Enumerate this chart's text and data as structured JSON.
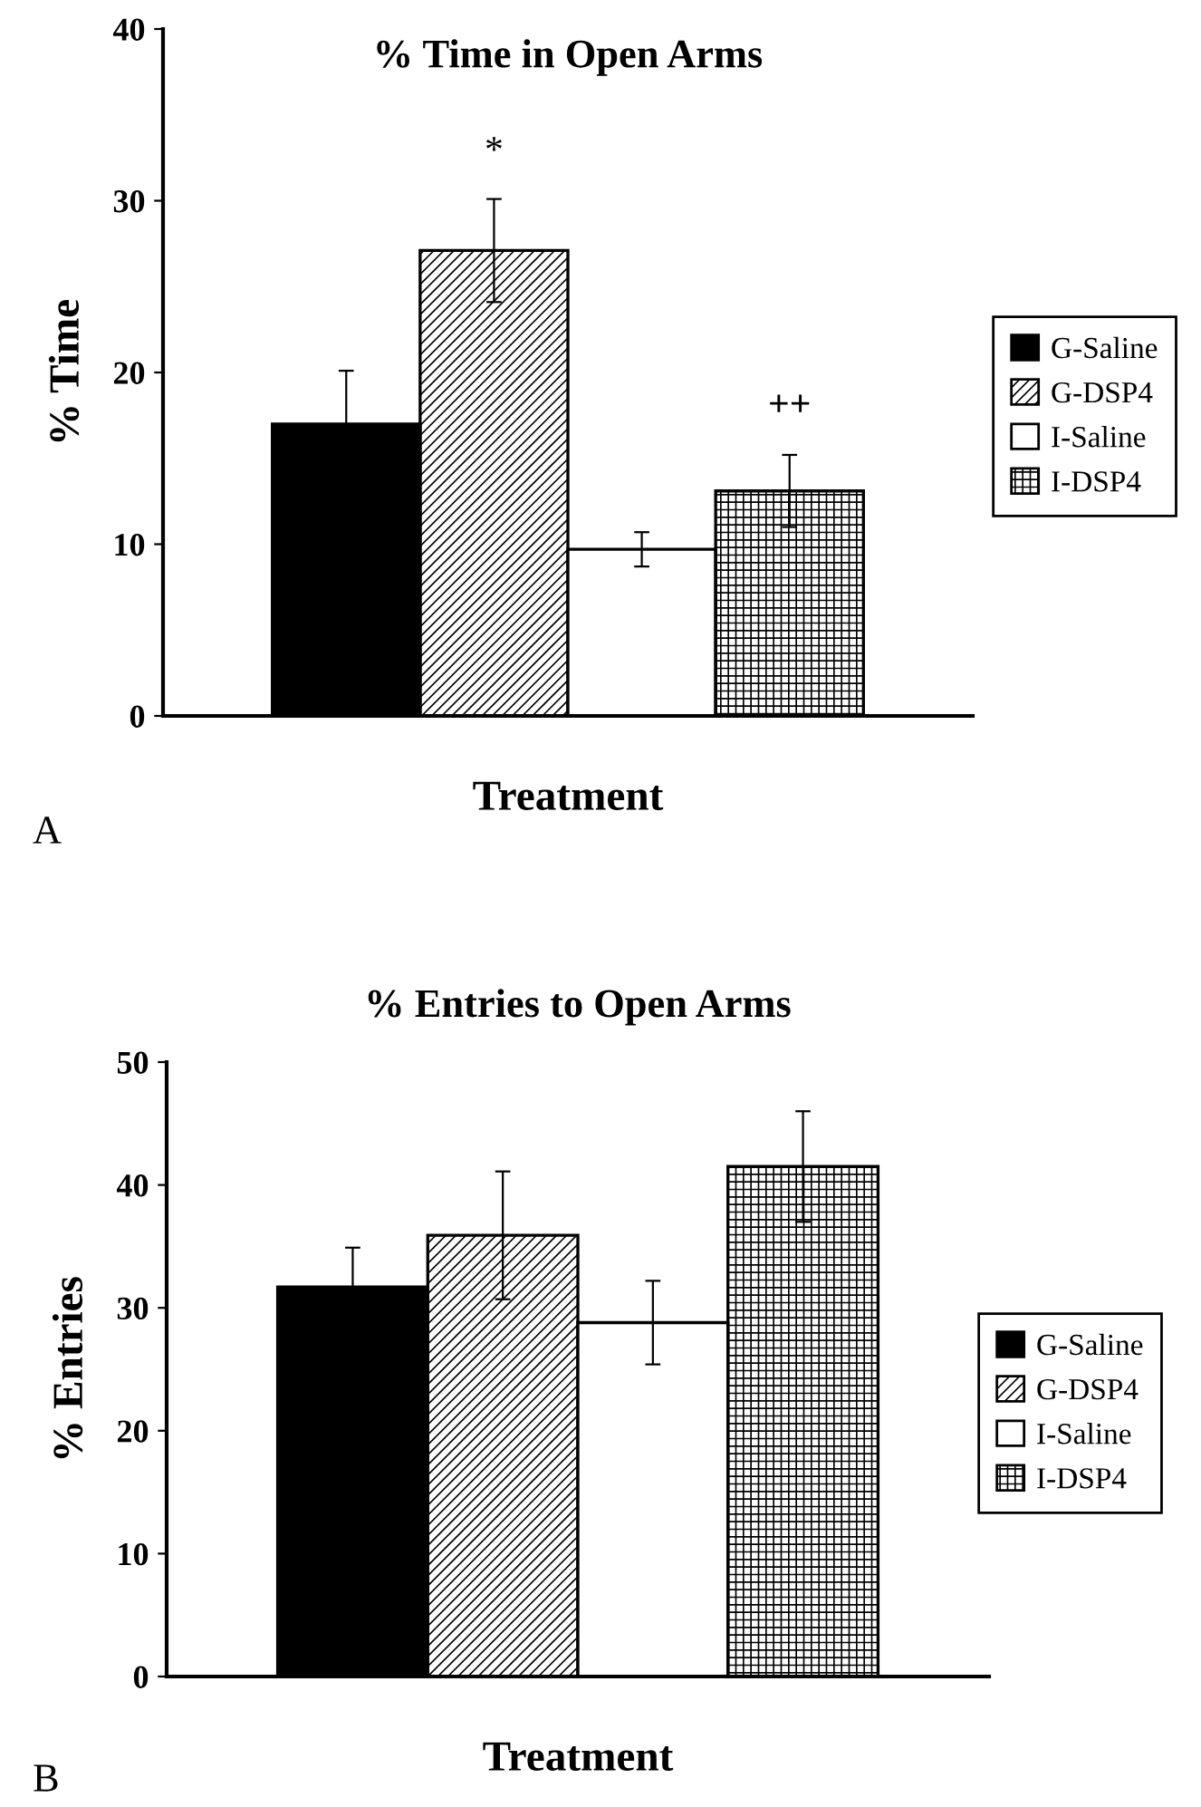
{
  "chart_data": [
    {
      "type": "bar",
      "title": "% Time in Open Arms",
      "xlabel": "Treatment",
      "ylabel": "% Time",
      "categories": [
        null
      ],
      "series": [
        {
          "name": "G-Saline",
          "color": "#000000",
          "values": [
            17.0
          ],
          "errors": [
            3.1
          ]
        },
        {
          "name": "G-DSP4",
          "color": "#000000",
          "values": [
            27.1
          ],
          "errors": [
            3.0
          ]
        },
        {
          "name": "I-Saline",
          "color": "#ffffff",
          "values": [
            9.7
          ],
          "errors": [
            1.0
          ]
        },
        {
          "name": "I-DSP4",
          "color": "#000000",
          "values": [
            13.1
          ],
          "errors": [
            2.1
          ]
        }
      ],
      "ylim": [
        0,
        40
      ],
      "yticks": [
        0,
        10,
        20,
        30,
        40
      ],
      "tick_labels": "y",
      "grid": false,
      "legend": "right",
      "annotations": [
        "*",
        "++",
        "A"
      ]
    },
    {
      "type": "bar",
      "title": "% Entries to Open Arms",
      "xlabel": "Treatment",
      "ylabel": "% Entries",
      "categories": [
        null
      ],
      "series": [
        {
          "name": "G-Saline",
          "color": "#000000",
          "values": [
            31.7
          ],
          "errors": [
            3.2
          ]
        },
        {
          "name": "G-DSP4",
          "color": "#000000",
          "values": [
            35.9
          ],
          "errors": [
            5.2
          ]
        },
        {
          "name": "I-Saline",
          "color": "#ffffff",
          "values": [
            28.8
          ],
          "errors": [
            3.4
          ]
        },
        {
          "name": "I-DSP4",
          "color": "#000000",
          "values": [
            41.5
          ],
          "errors": [
            4.5
          ]
        }
      ],
      "ylim": [
        0,
        50
      ],
      "yticks": [
        0,
        10,
        20,
        30,
        40,
        50
      ],
      "tick_labels": "y",
      "grid": false,
      "legend": "right",
      "annotations": [
        "B"
      ]
    }
  ]
}
